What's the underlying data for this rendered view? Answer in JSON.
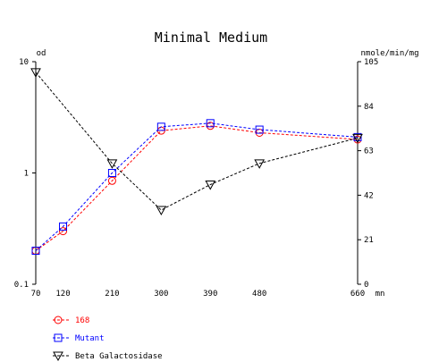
{
  "chart_data": {
    "type": "line",
    "title": "Minimal Medium",
    "left_axis": {
      "label": "od",
      "scale": "log",
      "range": [
        0.1,
        10
      ],
      "ticks": [
        "10",
        "1",
        "0.1"
      ],
      "tick_values": [
        10,
        1,
        0.1
      ]
    },
    "right_axis": {
      "label": "nmole/min/mg",
      "scale": "linear",
      "range": [
        0,
        105
      ],
      "ticks": [
        "105",
        "84",
        "63",
        "42",
        "21",
        "0"
      ],
      "tick_values": [
        105,
        84,
        63,
        42,
        21,
        0
      ]
    },
    "x_axis": {
      "unit": "mn",
      "range": [
        70,
        660
      ],
      "ticks": [
        "70",
        "120",
        "210",
        "300",
        "390",
        "480",
        "660"
      ],
      "tick_values": [
        70,
        120,
        210,
        300,
        390,
        480,
        660
      ]
    },
    "grid": false,
    "legend_position": "bottom-left",
    "series": [
      {
        "name": "168",
        "axis": "left",
        "color": "#ff0000",
        "marker": "circle",
        "x": [
          70,
          120,
          210,
          300,
          390,
          480,
          660
        ],
        "y": [
          0.2,
          0.3,
          0.85,
          2.4,
          2.65,
          2.3,
          2.0
        ]
      },
      {
        "name": "Mutant",
        "axis": "left",
        "color": "#0000ff",
        "marker": "square",
        "x": [
          70,
          120,
          210,
          300,
          390,
          480,
          660
        ],
        "y": [
          0.2,
          0.33,
          1.0,
          2.6,
          2.8,
          2.45,
          2.1
        ]
      },
      {
        "name": "Beta Galactosidase",
        "axis": "right",
        "color": "#000000",
        "marker": "triangle-down",
        "x": [
          70,
          210,
          300,
          390,
          480,
          660
        ],
        "y": [
          100,
          57,
          35,
          47,
          57,
          69
        ]
      }
    ]
  }
}
